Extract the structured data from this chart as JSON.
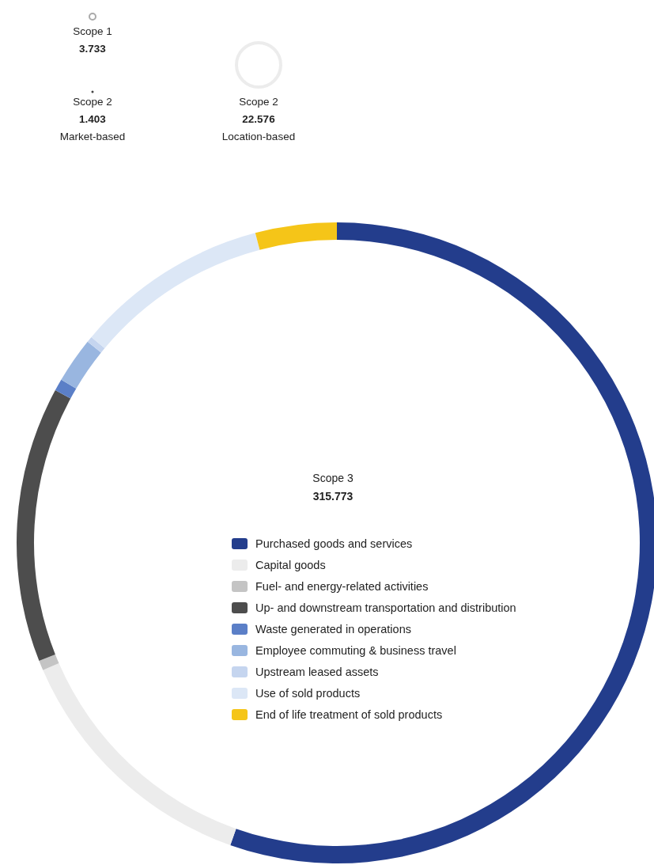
{
  "chart_data": {
    "type": "donut",
    "title": "Scope 3",
    "subtitle": "315.773",
    "categories": [
      "Purchased goods and services",
      "Capital goods",
      "Fuel- and energy-related activities",
      "Up- and downstream transportation and distribution",
      "Waste generated in operations",
      "Employee commuting & business travel",
      "Upstream leased assets",
      "Use of sold products",
      "End of life treatment of sold products"
    ],
    "values": [
      55.4,
      13.1,
      0.5,
      13.9,
      0.6,
      2.3,
      0.3,
      9.8,
      4.1
    ],
    "colors": [
      "#233d8c",
      "#ececec",
      "#c4c4c4",
      "#4d4d4d",
      "#5b7fc7",
      "#99b6e0",
      "#c5d5ef",
      "#dce7f6",
      "#f5c518"
    ],
    "legend": "center",
    "annotations": [
      "Scope 1",
      "3.733",
      "Scope 2",
      "1.403",
      "Market-based",
      "Scope 2",
      "22.576",
      "Location-based"
    ]
  }
}
